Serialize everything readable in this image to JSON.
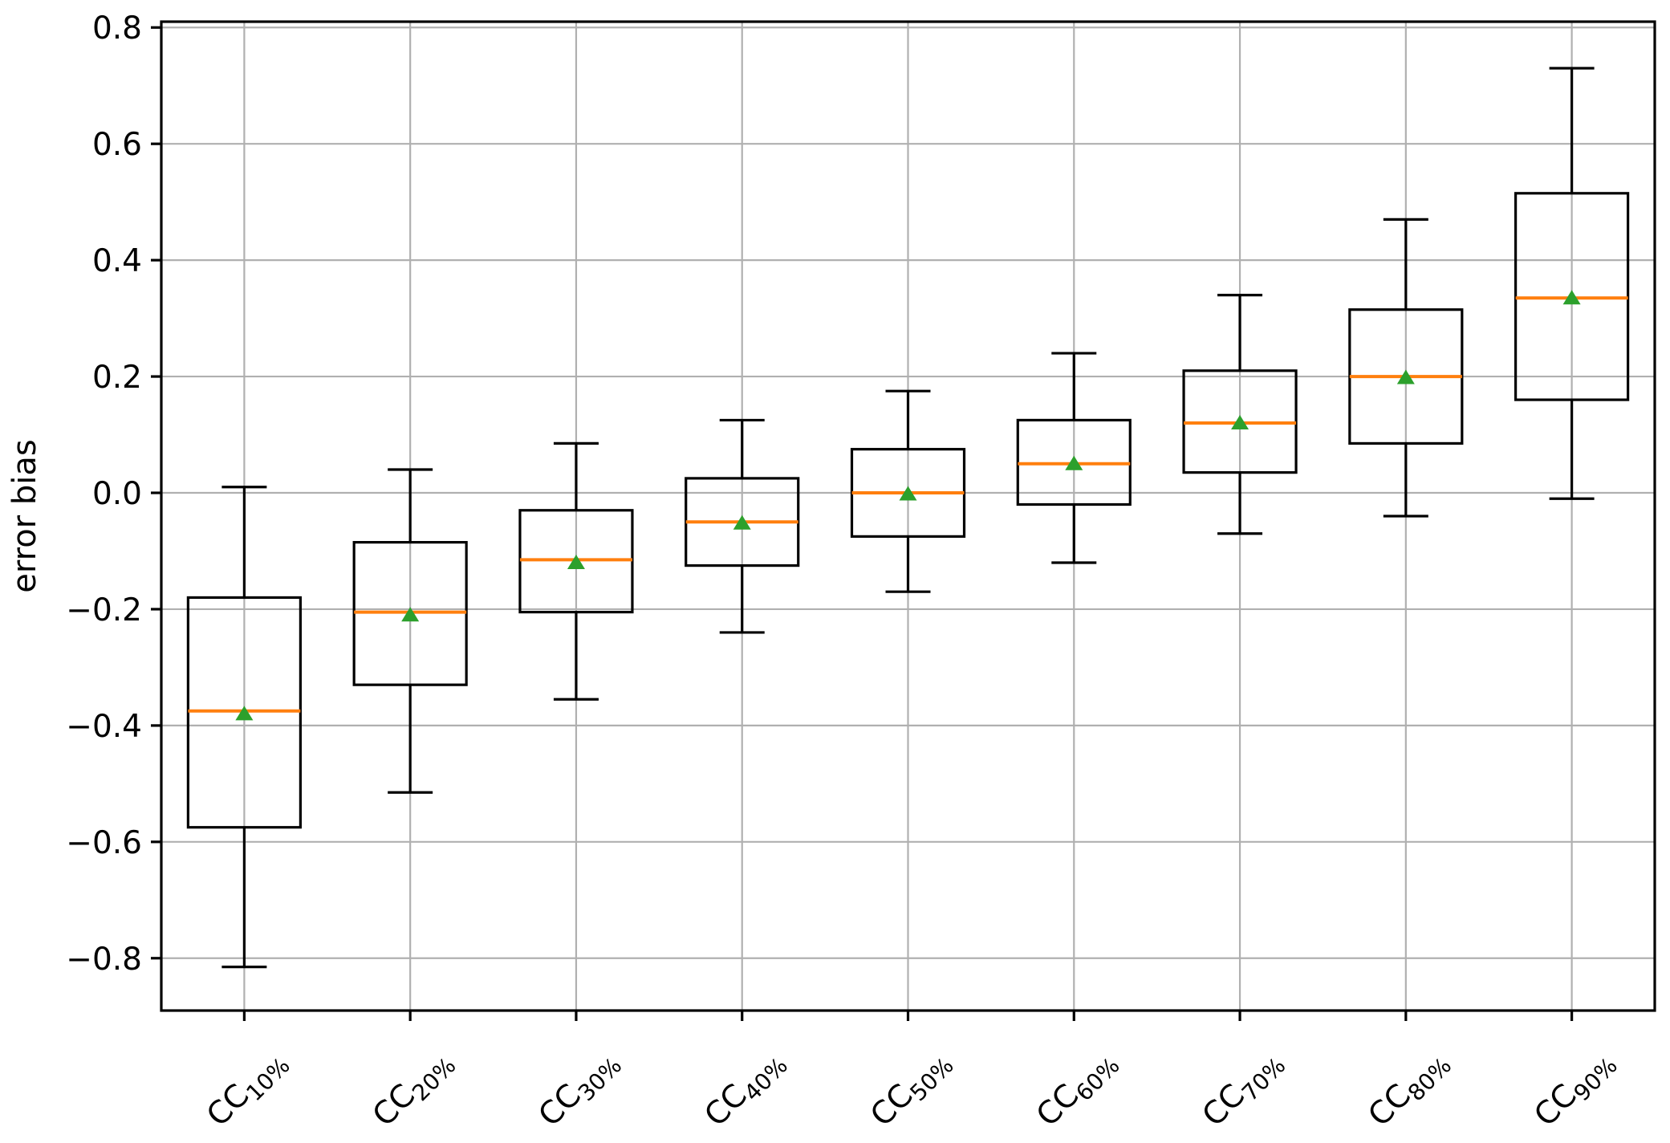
{
  "figure": {
    "title": "",
    "ylabel": "error bias",
    "xlabel": ""
  },
  "chart_data": {
    "type": "boxplot",
    "title": "",
    "xlabel": "",
    "ylabel": "error bias",
    "ylim": [
      -0.89,
      0.81
    ],
    "grid": true,
    "legend": null,
    "yticks": [
      {
        "v": 0.8,
        "label": "0.8"
      },
      {
        "v": 0.6,
        "label": "0.6"
      },
      {
        "v": 0.4,
        "label": "0.4"
      },
      {
        "v": 0.2,
        "label": "0.2"
      },
      {
        "v": 0.0,
        "label": "0.0"
      },
      {
        "v": -0.2,
        "label": "−0.2"
      },
      {
        "v": -0.4,
        "label": "−0.4"
      },
      {
        "v": -0.6,
        "label": "−0.6"
      },
      {
        "v": -0.8,
        "label": "−0.8"
      }
    ],
    "categories": [
      {
        "label": "CC10%",
        "prefix": "CC",
        "subscript": "10%"
      },
      {
        "label": "CC20%",
        "prefix": "CC",
        "subscript": "20%"
      },
      {
        "label": "CC30%",
        "prefix": "CC",
        "subscript": "30%"
      },
      {
        "label": "CC40%",
        "prefix": "CC",
        "subscript": "40%"
      },
      {
        "label": "CC50%",
        "prefix": "CC",
        "subscript": "50%"
      },
      {
        "label": "CC60%",
        "prefix": "CC",
        "subscript": "60%"
      },
      {
        "label": "CC70%",
        "prefix": "CC",
        "subscript": "70%"
      },
      {
        "label": "CC80%",
        "prefix": "CC",
        "subscript": "80%"
      },
      {
        "label": "CC90%",
        "prefix": "CC",
        "subscript": "90%"
      }
    ],
    "boxes": [
      {
        "category": "CC10%",
        "whisker_low": -0.815,
        "q1": -0.575,
        "median": -0.375,
        "mean": -0.38,
        "q3": -0.18,
        "whisker_high": 0.01
      },
      {
        "category": "CC20%",
        "whisker_low": -0.515,
        "q1": -0.33,
        "median": -0.205,
        "mean": -0.21,
        "q3": -0.085,
        "whisker_high": 0.04
      },
      {
        "category": "CC30%",
        "whisker_low": -0.355,
        "q1": -0.205,
        "median": -0.115,
        "mean": -0.12,
        "q3": -0.03,
        "whisker_high": 0.085
      },
      {
        "category": "CC40%",
        "whisker_low": -0.24,
        "q1": -0.125,
        "median": -0.05,
        "mean": -0.052,
        "q3": 0.025,
        "whisker_high": 0.125
      },
      {
        "category": "CC50%",
        "whisker_low": -0.17,
        "q1": -0.075,
        "median": 0.0,
        "mean": -0.002,
        "q3": 0.075,
        "whisker_high": 0.175
      },
      {
        "category": "CC60%",
        "whisker_low": -0.12,
        "q1": -0.02,
        "median": 0.05,
        "mean": 0.05,
        "q3": 0.125,
        "whisker_high": 0.24
      },
      {
        "category": "CC70%",
        "whisker_low": -0.07,
        "q1": 0.035,
        "median": 0.12,
        "mean": 0.12,
        "q3": 0.21,
        "whisker_high": 0.34
      },
      {
        "category": "CC80%",
        "whisker_low": -0.04,
        "q1": 0.085,
        "median": 0.2,
        "mean": 0.198,
        "q3": 0.315,
        "whisker_high": 0.47
      },
      {
        "category": "CC90%",
        "whisker_low": -0.01,
        "q1": 0.16,
        "median": 0.335,
        "mean": 0.335,
        "q3": 0.515,
        "whisker_high": 0.73
      }
    ],
    "colors": {
      "box_edge": "#000000",
      "median": "#ff7f0e",
      "mean_marker": "#2ca02c",
      "grid": "#b0b0b0",
      "axes": "#000000",
      "background": "#ffffff"
    },
    "mean_marker_shape": "triangle-up"
  }
}
